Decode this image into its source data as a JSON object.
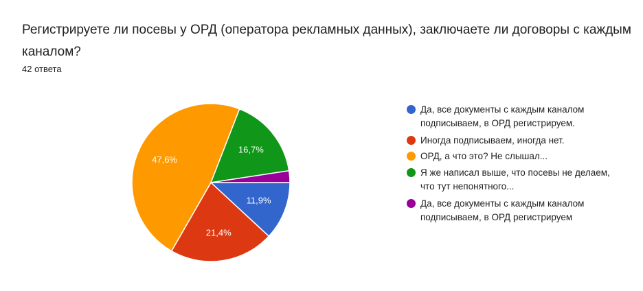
{
  "chart_data": {
    "type": "pie",
    "title": "Регистрируете ли посевы у ОРД (оператора рекламных данных), заключаете ли договоры с каждым каналом?",
    "subtitle": "42 ответа",
    "categories": [
      "Да, все документы с каждым каналом подписываем, в ОРД регистрируем.",
      "Иногда подписываем, иногда нет.",
      "ОРД, а что это? Не слышал...",
      "Я же написал выше, что посевы не делаем, что тут непонятного...",
      "Да, все документы с каждым каналом подписываем, в ОРД регистрируем"
    ],
    "values": [
      11.9,
      21.4,
      47.6,
      16.7,
      2.4
    ],
    "value_labels": [
      "11,9%",
      "21,4%",
      "47,6%",
      "16,7%",
      null
    ],
    "colors": [
      "#3366cc",
      "#dc3912",
      "#ff9900",
      "#109618",
      "#990099"
    ]
  }
}
